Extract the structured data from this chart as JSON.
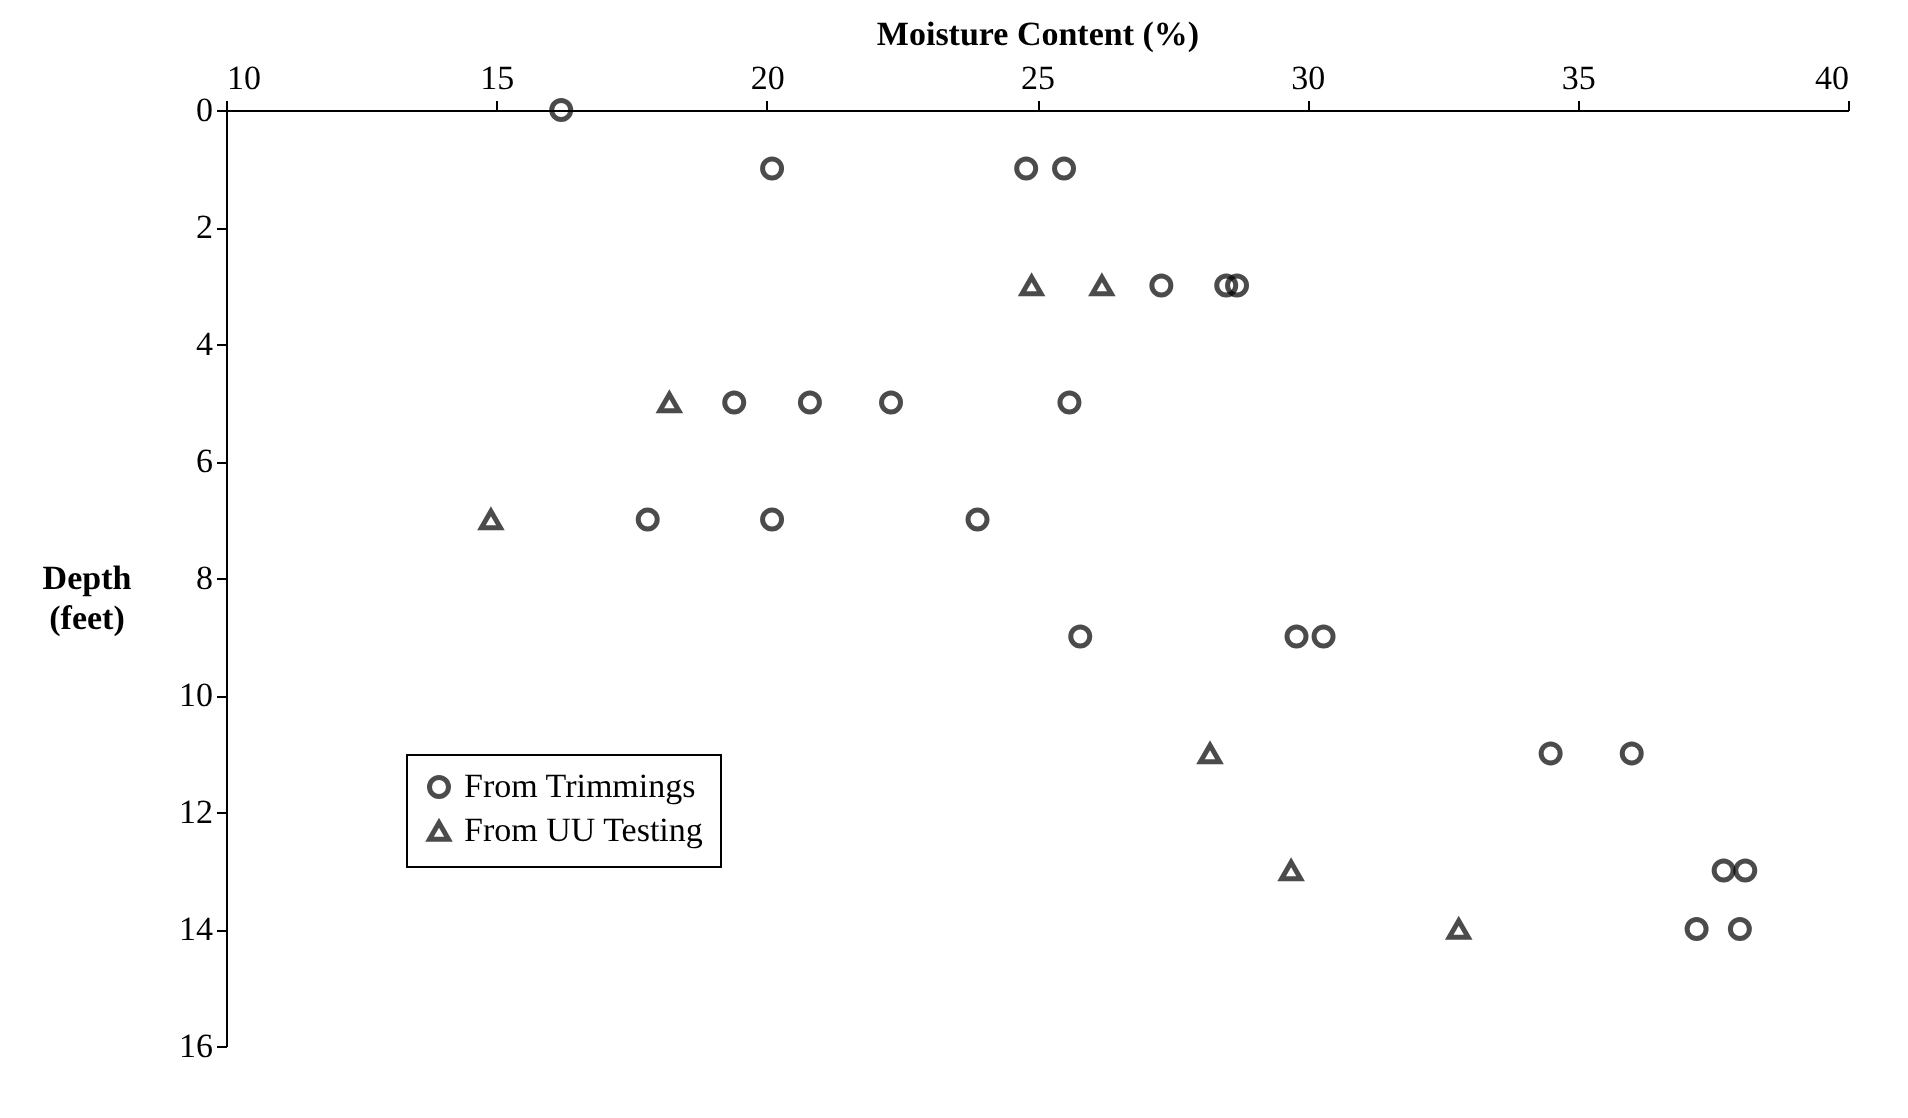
{
  "chart_data": {
    "type": "scatter",
    "xlabel": "Moisture Content (%)",
    "ylabel": "Depth (feet)",
    "xlim": [
      10,
      40
    ],
    "xticks": [
      10,
      15,
      20,
      25,
      30,
      35,
      40
    ],
    "ylim": [
      16,
      0
    ],
    "yticks": [
      0,
      2,
      4,
      6,
      8,
      10,
      12,
      14,
      16
    ],
    "grid": false,
    "legend": "bottom left",
    "series": [
      {
        "name": "From Trimmings",
        "color": "#000000",
        "marker": "circle",
        "x": [
          16.2,
          20.1,
          24.8,
          25.5,
          27.3,
          28.5,
          28.7,
          19.4,
          20.8,
          22.3,
          25.6,
          17.8,
          20.1,
          23.9,
          25.8,
          29.8,
          30.3,
          34.5,
          36.0,
          37.7,
          38.1,
          37.2,
          38.0
        ],
        "values": [
          0,
          1,
          1,
          1,
          3,
          3,
          3,
          5,
          5,
          5,
          5,
          7,
          7,
          7,
          9,
          9,
          9,
          11,
          11,
          13,
          13,
          14,
          14
        ]
      },
      {
        "name": "From UU Testing",
        "color": "#000000",
        "marker": "triangle",
        "x": [
          24.9,
          26.2,
          18.2,
          14.9,
          28.2,
          29.7,
          32.8
        ],
        "values": [
          3,
          3,
          5,
          7,
          11,
          13,
          14
        ]
      }
    ]
  }
}
